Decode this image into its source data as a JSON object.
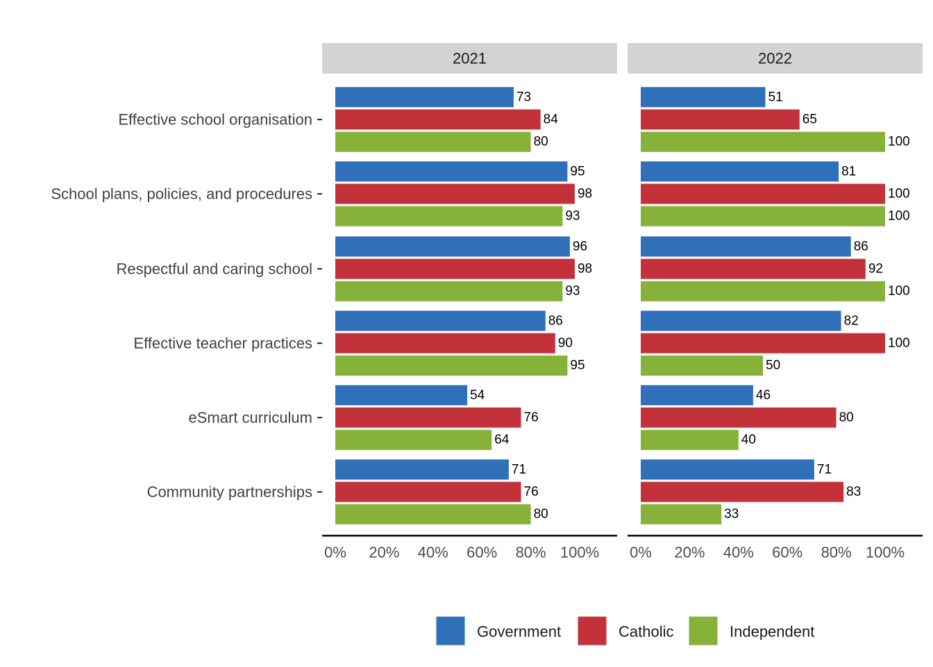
{
  "chart_data": {
    "type": "bar",
    "orientation": "horizontal",
    "facets": [
      "2021",
      "2022"
    ],
    "categories": [
      "Effective school organisation",
      "School plans, policies, and procedures",
      "Respectful and caring school",
      "Effective teacher practices",
      "eSmart curriculum",
      "Community partnerships"
    ],
    "series": [
      {
        "name": "Government",
        "color": "#3070B8",
        "values": {
          "2021": [
            73,
            95,
            96,
            86,
            54,
            71
          ],
          "2022": [
            51,
            81,
            86,
            82,
            46,
            71
          ]
        }
      },
      {
        "name": "Catholic",
        "color": "#C3313A",
        "values": {
          "2021": [
            84,
            98,
            98,
            90,
            76,
            76
          ],
          "2022": [
            65,
            100,
            92,
            100,
            80,
            83
          ]
        }
      },
      {
        "name": "Independent",
        "color": "#86B23A",
        "values": {
          "2021": [
            80,
            93,
            93,
            95,
            64,
            80
          ],
          "2022": [
            100,
            100,
            100,
            50,
            40,
            33
          ]
        }
      }
    ],
    "xlim": [
      0,
      100
    ],
    "x_ticks": [
      "0%",
      "20%",
      "40%",
      "60%",
      "80%",
      "100%"
    ],
    "xlabel": "",
    "ylabel": "",
    "grid": false,
    "legend_position": "bottom"
  }
}
